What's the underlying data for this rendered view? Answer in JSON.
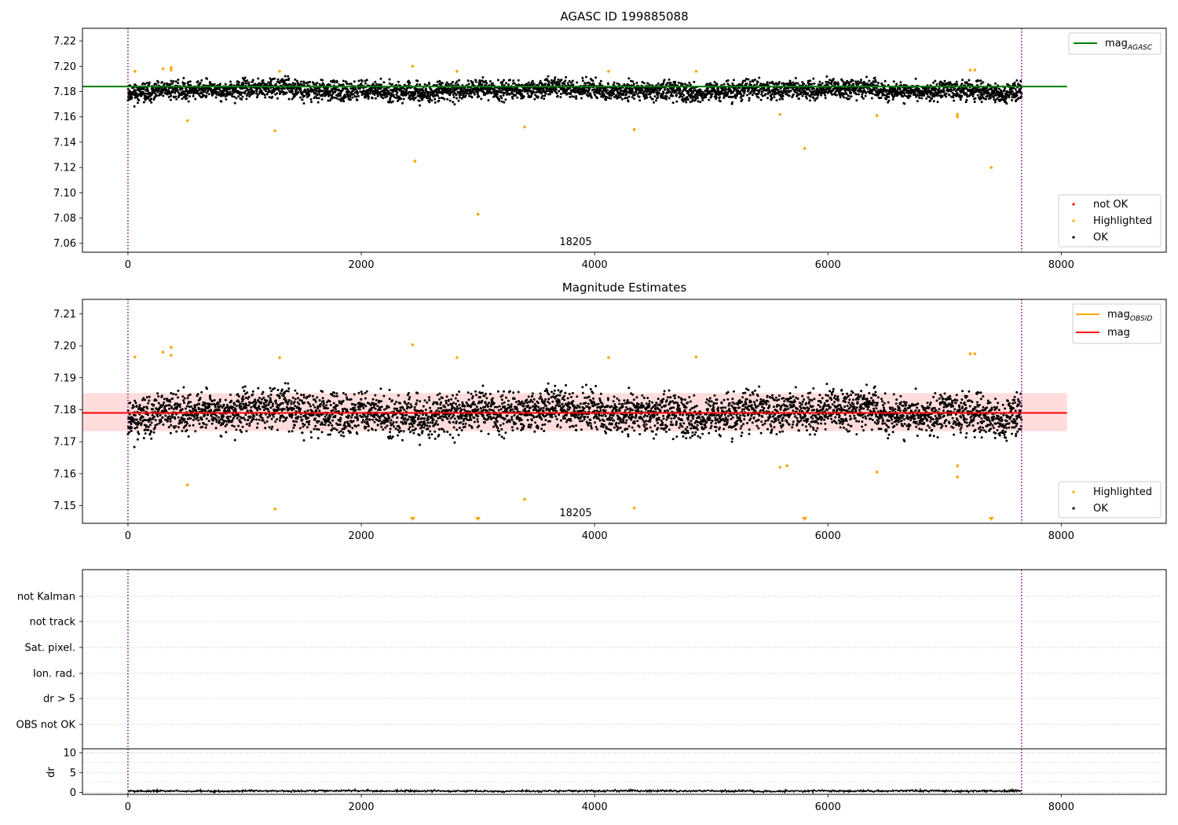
{
  "figure": {
    "chart_data": [
      {
        "type": "scatter",
        "title": "AGASC ID 199885088",
        "xlabel": "",
        "ylabel": "",
        "xlim": [
          -390,
          8900
        ],
        "ylim": [
          7.053,
          7.23
        ],
        "x_ticks": [
          0,
          2000,
          4000,
          6000,
          8000
        ],
        "y_ticks": [
          7.06,
          7.08,
          7.1,
          7.12,
          7.14,
          7.16,
          7.18,
          7.2,
          7.22
        ],
        "grid": false,
        "reference_lines": [
          {
            "name": "mag_AGASC",
            "label_main": "mag",
            "label_sub": "AGASC",
            "y": 7.184,
            "x_range": [
              -390,
              8050
            ],
            "color": "#008000"
          }
        ],
        "vertical_markers": [
          {
            "x": 0,
            "color": "#800080"
          },
          {
            "x": 7660,
            "color": "#800080"
          }
        ],
        "annotation": {
          "text": "18205",
          "x": 3830
        },
        "legend_top": {
          "position": "top-right",
          "entries": [
            "mag_AGASC"
          ]
        },
        "legend_bottom": {
          "position": "bottom-right",
          "entries": [
            {
              "label": "not OK",
              "color": "#ff0000"
            },
            {
              "label": "Highlighted",
              "color": "#ffa500"
            },
            {
              "label": "OK",
              "color": "#000000"
            }
          ]
        },
        "series": [
          {
            "name": "OK",
            "color": "#000000",
            "x_range": [
              0,
              7660
            ],
            "n_points": 4200,
            "baseline": 7.181,
            "spread": 0.006
          },
          {
            "name": "Highlighted",
            "color": "#ffa500",
            "points": [
              [
                60,
                7.196
              ],
              [
                300,
                7.198
              ],
              [
                370,
                7.199
              ],
              [
                370,
                7.197
              ],
              [
                510,
                7.157
              ],
              [
                1260,
                7.149
              ],
              [
                1300,
                7.196
              ],
              [
                2440,
                7.2
              ],
              [
                2460,
                7.125
              ],
              [
                2820,
                7.196
              ],
              [
                3000,
                7.083
              ],
              [
                3400,
                7.152
              ],
              [
                4120,
                7.196
              ],
              [
                4340,
                7.15
              ],
              [
                4870,
                7.196
              ],
              [
                5590,
                7.162
              ],
              [
                5800,
                7.135
              ],
              [
                6420,
                7.161
              ],
              [
                7110,
                7.162
              ],
              [
                7110,
                7.16
              ],
              [
                7220,
                7.197
              ],
              [
                7260,
                7.197
              ],
              [
                7400,
                7.12
              ]
            ]
          }
        ]
      },
      {
        "type": "scatter",
        "title": "Magnitude Estimates",
        "xlabel": "",
        "ylabel": "",
        "xlim": [
          -390,
          8900
        ],
        "ylim": [
          7.1445,
          7.2145
        ],
        "x_ticks": [
          0,
          2000,
          4000,
          6000,
          8000
        ],
        "y_ticks": [
          7.15,
          7.16,
          7.17,
          7.18,
          7.19,
          7.2,
          7.21
        ],
        "grid": false,
        "band": {
          "y_low": 7.1733,
          "y_high": 7.1852,
          "x_range": [
            -390,
            8050
          ],
          "color": "#ffc0c0"
        },
        "reference_lines": [
          {
            "name": "mag",
            "label_main": "mag",
            "label_sub": "",
            "y": 7.179,
            "x_range": [
              -390,
              8050
            ],
            "color": "#ff0000"
          }
        ],
        "vertical_markers": [
          {
            "x": 0,
            "color": "#800080"
          },
          {
            "x": 7660,
            "color": "#800080"
          }
        ],
        "annotation": {
          "text": "18205",
          "x": 3830
        },
        "legend_top": {
          "position": "top-right",
          "entries": [
            {
              "label_main": "mag",
              "label_sub": "OBSID",
              "color": "#ffa500"
            },
            {
              "label_main": "mag",
              "label_sub": "",
              "color": "#ff0000"
            }
          ]
        },
        "legend_bottom": {
          "position": "bottom-right",
          "entries": [
            {
              "label": "Highlighted",
              "color": "#ffa500"
            },
            {
              "label": "OK",
              "color": "#000000"
            }
          ]
        },
        "series": [
          {
            "name": "OK",
            "color": "#000000",
            "x_range": [
              0,
              7660
            ],
            "n_points": 4200,
            "baseline": 7.179,
            "spread": 0.005
          },
          {
            "name": "Highlighted",
            "color": "#ffa500",
            "points": [
              [
                60,
                7.1965
              ],
              [
                300,
                7.198
              ],
              [
                370,
                7.1995
              ],
              [
                370,
                7.197
              ],
              [
                510,
                7.1565
              ],
              [
                1260,
                7.149
              ],
              [
                1300,
                7.1963
              ],
              [
                2440,
                7.2003
              ],
              [
                2820,
                7.1963
              ],
              [
                3400,
                7.152
              ],
              [
                4120,
                7.1963
              ],
              [
                4340,
                7.1493
              ],
              [
                4870,
                7.1965
              ],
              [
                5590,
                7.162
              ],
              [
                5650,
                7.1625
              ],
              [
                6420,
                7.1605
              ],
              [
                7110,
                7.1625
              ],
              [
                7110,
                7.159
              ],
              [
                7220,
                7.1975
              ],
              [
                7260,
                7.1975
              ]
            ]
          },
          {
            "name": "Highlighted (off-scale)",
            "color": "#ffa500",
            "marker": "triangle-down",
            "x": [
              2440,
              3000,
              5800,
              7400
            ]
          }
        ]
      },
      {
        "type": "scatter",
        "title": "",
        "xlabel": "",
        "ylabel": "",
        "xlim": [
          -390,
          8900
        ],
        "categories": [
          "not Kalman",
          "not track",
          "Sat. pixel.",
          "Ion. rad.",
          "dr > 5",
          "OBS not OK"
        ],
        "grid": true,
        "vertical_markers": [
          {
            "x": 0,
            "color": "#800080"
          },
          {
            "x": 7660,
            "color": "#800080"
          }
        ],
        "series": []
      },
      {
        "type": "line",
        "title": "",
        "xlabel": "",
        "ylabel": "dr",
        "xlim": [
          -390,
          8900
        ],
        "ylim": [
          -0.5,
          11
        ],
        "x_ticks": [
          0,
          2000,
          4000,
          6000,
          8000
        ],
        "y_ticks": [
          0,
          5,
          10
        ],
        "grid": true,
        "vertical_markers": [
          {
            "x": 0,
            "color": "#800080"
          },
          {
            "x": 7660,
            "color": "#800080"
          }
        ],
        "series": [
          {
            "name": "dr",
            "color": "#000000",
            "x_range": [
              0,
              7660
            ],
            "n_points": 1500,
            "baseline": 0.35,
            "spread": 0.2
          }
        ]
      }
    ]
  }
}
